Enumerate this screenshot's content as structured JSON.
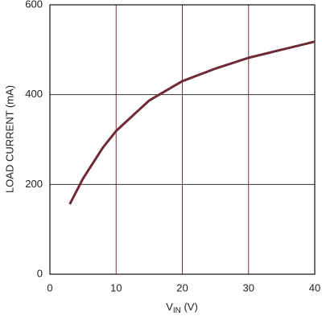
{
  "chart_data": {
    "type": "line",
    "xlabel": [
      "V",
      "IN",
      " (V)"
    ],
    "ylabel": "LOAD CURRENT (mA)",
    "x": [
      3,
      5,
      8,
      10,
      15,
      20,
      25,
      30,
      35,
      40
    ],
    "series": [
      {
        "color": "#6e2a37",
        "values": [
          156,
          213,
          282,
          319,
          387,
          430,
          458,
          482,
          500,
          518
        ]
      }
    ],
    "xlim": [
      0,
      40
    ],
    "xticks": [
      0,
      10,
      20,
      30,
      40
    ],
    "ylim": [
      0,
      600
    ],
    "yticks": [
      0,
      200,
      400,
      600
    ],
    "grid": true,
    "xgrid_color": "#7a3445",
    "ygrid_color": "#333333"
  }
}
